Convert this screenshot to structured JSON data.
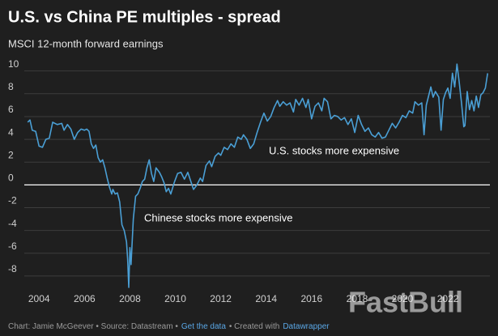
{
  "chart_data": {
    "type": "line",
    "title": "U.S. vs China PE multiples - spread",
    "subtitle": "MSCI 12-month forward earnings",
    "annotations": [
      "U.S. stocks more expensive",
      "Chinese stocks more expensive"
    ],
    "x": [
      2003.5,
      2003.6,
      2003.7,
      2003.85,
      2004.0,
      2004.15,
      2004.3,
      2004.45,
      2004.6,
      2004.8,
      2005.0,
      2005.1,
      2005.25,
      2005.4,
      2005.55,
      2005.7,
      2005.85,
      2006.0,
      2006.1,
      2006.2,
      2006.3,
      2006.4,
      2006.5,
      2006.6,
      2006.7,
      2006.8,
      2006.9,
      2007.0,
      2007.1,
      2007.2,
      2007.25,
      2007.35,
      2007.45,
      2007.55,
      2007.65,
      2007.75,
      2007.85,
      2007.9,
      2007.95,
      2008.0,
      2008.05,
      2008.15,
      2008.25,
      2008.35,
      2008.45,
      2008.55,
      2008.65,
      2008.75,
      2008.85,
      2008.95,
      2009.05,
      2009.15,
      2009.3,
      2009.4,
      2009.5,
      2009.6,
      2009.7,
      2009.8,
      2009.95,
      2010.1,
      2010.25,
      2010.4,
      2010.55,
      2010.7,
      2010.8,
      2010.95,
      2011.1,
      2011.2,
      2011.35,
      2011.5,
      2011.6,
      2011.75,
      2011.9,
      2012.0,
      2012.15,
      2012.3,
      2012.45,
      2012.6,
      2012.75,
      2012.9,
      2013.0,
      2013.15,
      2013.3,
      2013.45,
      2013.6,
      2013.75,
      2013.9,
      2014.05,
      2014.2,
      2014.35,
      2014.5,
      2014.6,
      2014.75,
      2014.9,
      2015.05,
      2015.2,
      2015.3,
      2015.45,
      2015.6,
      2015.75,
      2015.85,
      2016.0,
      2016.15,
      2016.3,
      2016.45,
      2016.55,
      2016.7,
      2016.85,
      2017.0,
      2017.15,
      2017.3,
      2017.45,
      2017.6,
      2017.75,
      2017.9,
      2018.05,
      2018.2,
      2018.35,
      2018.5,
      2018.65,
      2018.8,
      2018.95,
      2019.1,
      2019.25,
      2019.4,
      2019.55,
      2019.7,
      2019.85,
      2020.0,
      2020.15,
      2020.3,
      2020.45,
      2020.55,
      2020.7,
      2020.85,
      2020.95,
      2021.05,
      2021.15,
      2021.25,
      2021.35,
      2021.45,
      2021.6,
      2021.7,
      2021.8,
      2021.9,
      2022.0,
      2022.1,
      2022.2,
      2022.3,
      2022.4,
      2022.5,
      2022.6,
      2022.7,
      2022.75,
      2022.85,
      2022.95,
      2023.05,
      2023.15,
      2023.25,
      2023.35,
      2023.45,
      2023.55,
      2023.65,
      2023.75
    ],
    "values": [
      5.5,
      5.7,
      4.8,
      4.7,
      3.4,
      3.3,
      4.0,
      4.1,
      5.5,
      5.3,
      5.4,
      4.8,
      5.3,
      4.9,
      4.0,
      4.6,
      4.9,
      4.8,
      4.9,
      4.7,
      3.6,
      3.2,
      3.5,
      2.4,
      2.0,
      2.2,
      1.5,
      0.6,
      -0.2,
      -0.8,
      -0.4,
      -0.8,
      -0.7,
      -1.5,
      -3.5,
      -4.0,
      -5.0,
      -6.5,
      -9.0,
      -5.5,
      -7.0,
      -3.0,
      -1.0,
      -0.8,
      -0.3,
      0.3,
      0.5,
      1.5,
      2.2,
      1.0,
      0.3,
      1.5,
      1.1,
      0.7,
      0.2,
      -0.6,
      -0.3,
      -0.8,
      0.2,
      1.0,
      1.1,
      0.5,
      1.1,
      0.2,
      -0.4,
      0.0,
      0.6,
      0.3,
      1.7,
      2.1,
      1.6,
      2.5,
      2.8,
      2.6,
      3.3,
      3.1,
      3.6,
      3.3,
      4.2,
      4.0,
      4.4,
      4.0,
      3.2,
      3.6,
      4.6,
      5.5,
      6.3,
      5.6,
      6.0,
      6.8,
      7.4,
      6.9,
      7.3,
      7.0,
      7.2,
      6.4,
      7.5,
      7.0,
      7.6,
      6.8,
      7.5,
      5.8,
      6.9,
      7.2,
      6.5,
      7.6,
      7.3,
      5.8,
      6.1,
      6.0,
      5.7,
      5.9,
      5.3,
      5.8,
      4.6,
      6.1,
      5.3,
      4.7,
      5.0,
      4.4,
      4.2,
      4.6,
      4.1,
      4.2,
      4.8,
      5.4,
      5.0,
      5.5,
      6.1,
      5.9,
      6.5,
      6.3,
      7.3,
      7.0,
      7.2,
      4.4,
      7.0,
      7.8,
      8.6,
      7.7,
      8.2,
      7.7,
      4.8,
      7.5,
      8.1,
      8.5,
      7.6,
      9.8,
      8.6,
      10.6,
      9.0,
      7.2,
      5.1,
      5.2,
      8.2,
      6.6,
      7.4,
      6.5,
      7.8,
      6.8,
      7.9,
      8.1,
      8.5,
      9.8
    ],
    "color": "#4a9fd5",
    "xlim": [
      2003.35,
      2023.85
    ],
    "xticks": [
      2004,
      2006,
      2008,
      2010,
      2012,
      2014,
      2016,
      2018,
      2020,
      2022
    ],
    "ylim": [
      -9,
      10.9
    ],
    "yticks": [
      -8,
      -6,
      -4,
      -2,
      0,
      2,
      4,
      6,
      8,
      10
    ],
    "grid": true
  },
  "footer": [
    {
      "text": "Chart: Jamie McGeever • Source: Datastream •",
      "link": false
    },
    {
      "text": "Get the data",
      "link": true
    },
    {
      "text": "• Created with",
      "link": false
    },
    {
      "text": "Datawrapper",
      "link": true
    }
  ],
  "watermark": "FastBull"
}
